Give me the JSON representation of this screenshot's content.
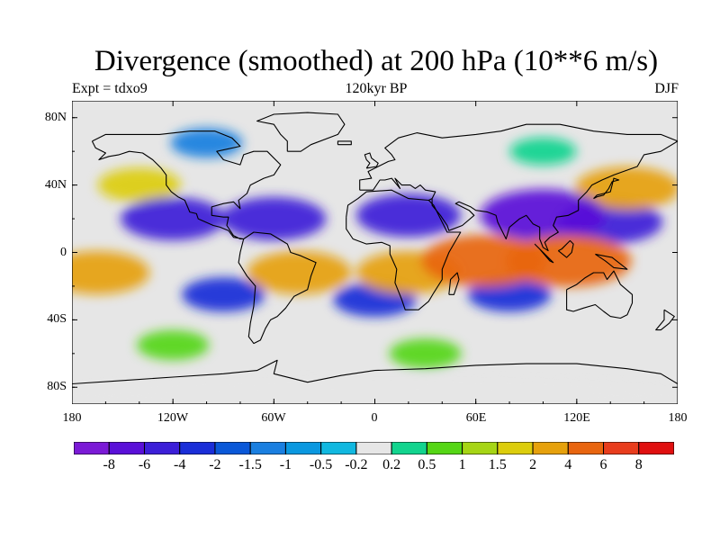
{
  "title": "Divergence (smoothed) at 200 hPa (10**6 m/s)",
  "left_subtitle": "Expt = tdxo9",
  "center_subtitle": "120kyr BP",
  "right_subtitle": "DJF",
  "lat_ticks": [
    "80N",
    "40N",
    "0",
    "40S",
    "80S"
  ],
  "lon_ticks": [
    "180",
    "120W",
    "60W",
    "0",
    "60E",
    "120E",
    "180"
  ],
  "colorbar": {
    "labels": [
      "-8",
      "-6",
      "-4",
      "-2",
      "-1.5",
      "-1",
      "-0.5",
      "-0.2",
      "0.2",
      "0.5",
      "1",
      "1.5",
      "2",
      "4",
      "6",
      "8"
    ],
    "colors": [
      "#7b1ad6",
      "#5a10d8",
      "#3c1fd8",
      "#1a2ed8",
      "#0a58d8",
      "#1a7fe0",
      "#0a98e0",
      "#11b8e0",
      "#e6e6e6",
      "#12d48e",
      "#55d615",
      "#a6d515",
      "#dccd0c",
      "#e6a10c",
      "#e8650f",
      "#e83d1d",
      "#e01010"
    ]
  },
  "chart_data": {
    "type": "heatmap",
    "title": "Divergence (smoothed) at 200 hPa (10**6 m/s)",
    "subtitle": "120kyr BP",
    "experiment": "Expt = tdxo9",
    "season": "DJF",
    "x_range": [
      -180,
      180
    ],
    "y_range": [
      -90,
      90
    ],
    "x_ticks": [
      -180,
      -120,
      -60,
      0,
      60,
      120,
      180
    ],
    "y_ticks": [
      80,
      40,
      0,
      -40,
      -80
    ],
    "levels": [
      -8,
      -6,
      -4,
      -2,
      -1.5,
      -1,
      -0.5,
      -0.2,
      0.2,
      0.5,
      1,
      1.5,
      2,
      4,
      6,
      8
    ],
    "features": [
      {
        "lon": -120,
        "lat": 20,
        "value": -4
      },
      {
        "lon": -60,
        "lat": 20,
        "value": -4
      },
      {
        "lon": 20,
        "lat": 22,
        "value": -4
      },
      {
        "lon": 100,
        "lat": 22,
        "value": -6
      },
      {
        "lon": 140,
        "lat": 18,
        "value": -4
      },
      {
        "lon": -140,
        "lat": 40,
        "value": 2
      },
      {
        "lon": 150,
        "lat": 38,
        "value": 4
      },
      {
        "lon": -45,
        "lat": -12,
        "value": 4
      },
      {
        "lon": 20,
        "lat": -12,
        "value": 4
      },
      {
        "lon": 65,
        "lat": -5,
        "value": 6
      },
      {
        "lon": 115,
        "lat": -5,
        "value": 6
      },
      {
        "lon": -165,
        "lat": -12,
        "value": 4
      },
      {
        "lon": -90,
        "lat": -25,
        "value": -2
      },
      {
        "lon": 0,
        "lat": -28,
        "value": -2
      },
      {
        "lon": 80,
        "lat": -25,
        "value": -2
      },
      {
        "lon": -120,
        "lat": -55,
        "value": 1
      },
      {
        "lon": 30,
        "lat": -60,
        "value": 1
      },
      {
        "lon": -100,
        "lat": 65,
        "value": -1
      },
      {
        "lon": 100,
        "lat": 60,
        "value": 0.5
      },
      {
        "lon": 0,
        "lat": -85,
        "value": 0
      }
    ]
  }
}
